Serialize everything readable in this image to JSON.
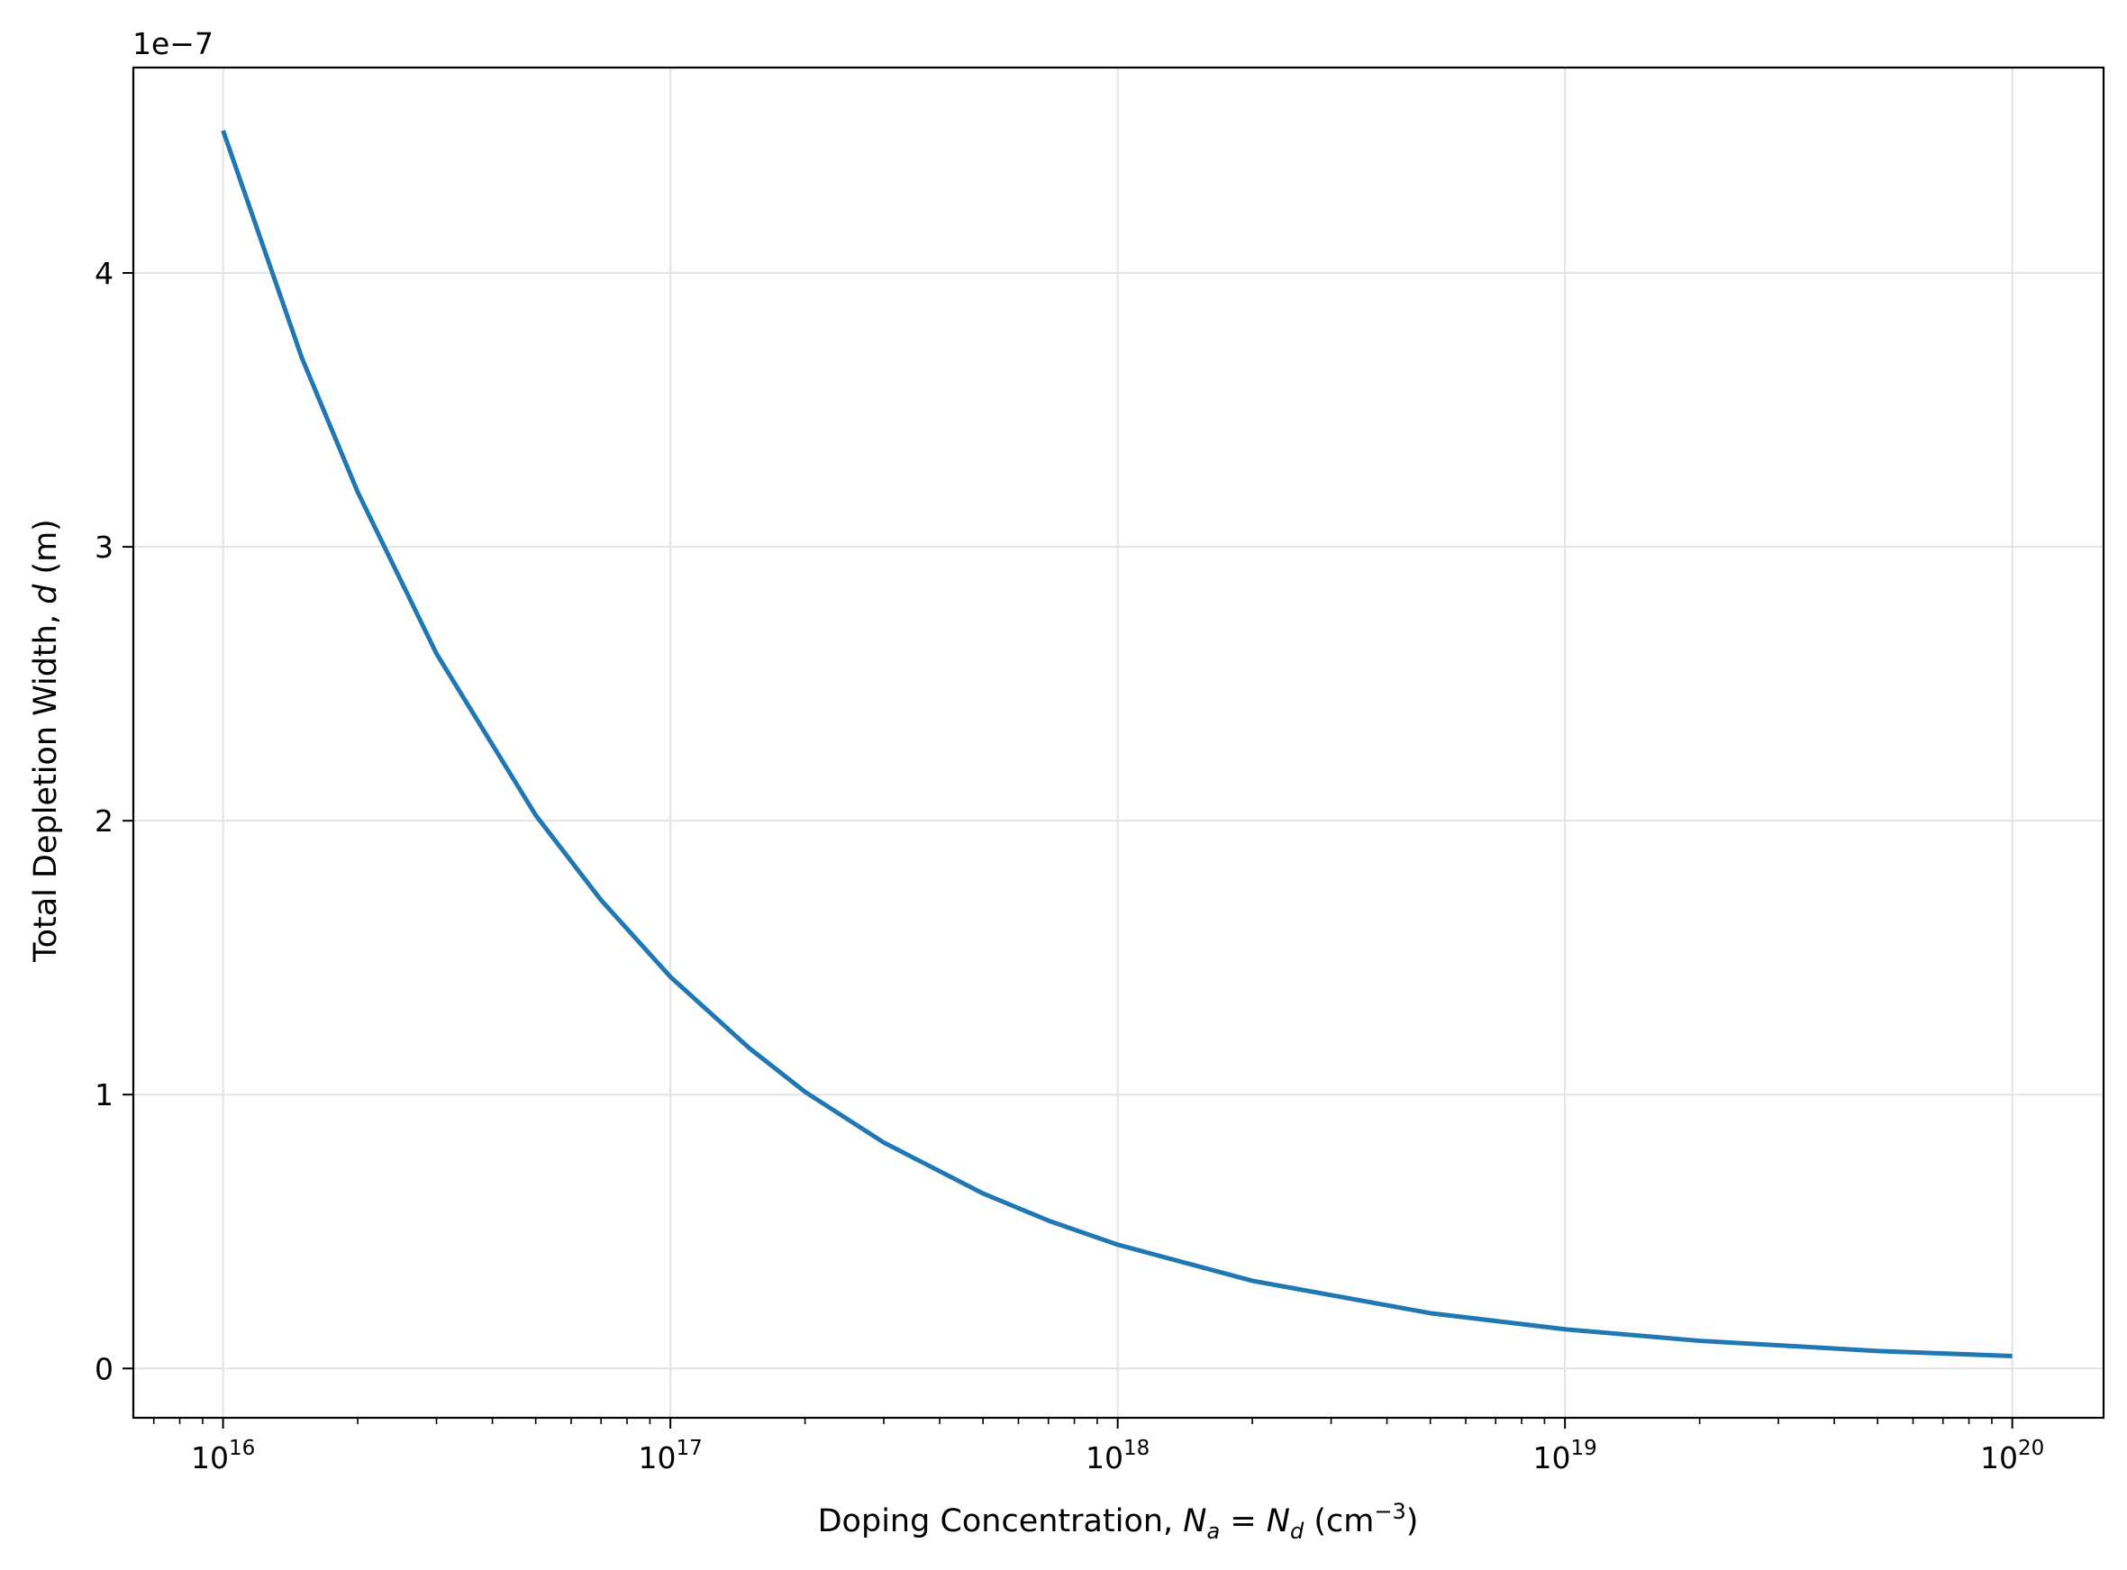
{
  "chart_data": {
    "type": "line",
    "title": "",
    "xlabel": {
      "prefix": "Doping Concentration, ",
      "var1": "N",
      "sub1": "a",
      "eq": " = ",
      "var2": "N",
      "sub2": "d",
      "unit_open": " (cm",
      "unit_exp": "−3",
      "unit_close": ")"
    },
    "ylabel": {
      "prefix": "Total Depletion Width, ",
      "var": "d",
      "suffix": " (m)"
    },
    "x_scale": "log",
    "xlim": [
      6300000000000000.0,
      1.6e+20
    ],
    "ylim": [
      -1.8e-08,
      4.75e-07
    ],
    "y_offset_label": "1e−7",
    "x_ticks": [
      {
        "value": 1e+16,
        "base": "10",
        "exp": "16"
      },
      {
        "value": 1e+17,
        "base": "10",
        "exp": "17"
      },
      {
        "value": 1e+18,
        "base": "10",
        "exp": "18"
      },
      {
        "value": 1e+19,
        "base": "10",
        "exp": "19"
      },
      {
        "value": 1e+20,
        "base": "10",
        "exp": "20"
      }
    ],
    "y_ticks": [
      {
        "value": 0,
        "label": "0"
      },
      {
        "value": 1e-07,
        "label": "1"
      },
      {
        "value": 2e-07,
        "label": "2"
      },
      {
        "value": 3e-07,
        "label": "3"
      },
      {
        "value": 4e-07,
        "label": "4"
      }
    ],
    "grid": true,
    "series": [
      {
        "color": "#1f77b4",
        "x": [
          1e+16,
          1.5e+16,
          2e+16,
          3e+16,
          5e+16,
          7e+16,
          1e+17,
          1.5e+17,
          2e+17,
          3e+17,
          5e+17,
          7e+17,
          1e+18,
          2e+18,
          5e+18,
          1e+19,
          2e+19,
          5e+19,
          1e+20
        ],
        "y": [
          4.52e-07,
          3.69e-07,
          3.2e-07,
          2.61e-07,
          2.02e-07,
          1.71e-07,
          1.43e-07,
          1.17e-07,
          1.01e-07,
          8.25e-08,
          6.39e-08,
          5.4e-08,
          4.52e-08,
          3.2e-08,
          2.02e-08,
          1.43e-08,
          1.01e-08,
          6.39e-09,
          4.52e-09
        ]
      }
    ]
  }
}
